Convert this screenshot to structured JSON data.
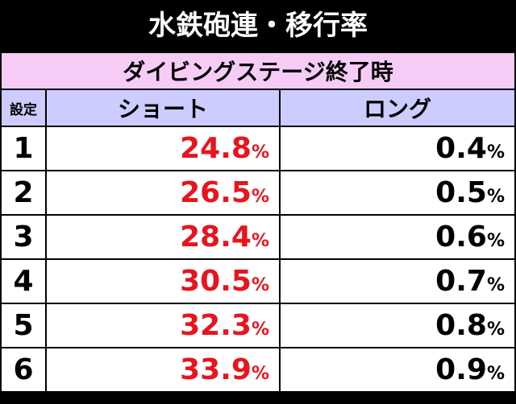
{
  "header": {
    "title": "水鉄砲連・移行率"
  },
  "table": {
    "caption": "ダイビングステージ終了時",
    "columns": [
      "設定",
      "ショート",
      "ロング"
    ],
    "rows": [
      [
        "1",
        "24.8%",
        "0.4%"
      ],
      [
        "2",
        "26.5%",
        "0.5%"
      ],
      [
        "3",
        "28.4%",
        "0.6%"
      ],
      [
        "4",
        "30.5%",
        "0.7%"
      ],
      [
        "5",
        "32.3%",
        "0.8%"
      ],
      [
        "6",
        "33.9%",
        "0.9%"
      ]
    ]
  }
}
